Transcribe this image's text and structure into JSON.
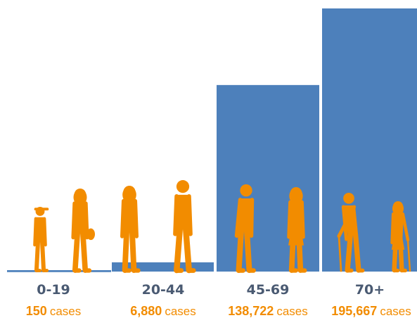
{
  "chart_data": {
    "type": "bar",
    "title": "",
    "xlabel": "",
    "ylabel": "",
    "categories": [
      "0-19",
      "20-44",
      "45-69",
      "70+"
    ],
    "values": [
      150,
      6880,
      138722,
      195667
    ],
    "value_labels": [
      {
        "number": "150",
        "unit": "cases"
      },
      {
        "number": "6,880",
        "unit": "cases"
      },
      {
        "number": "138,722",
        "unit": "cases"
      },
      {
        "number": "195,667",
        "unit": "cases"
      }
    ],
    "ylim": [
      0,
      195667
    ],
    "grid": false,
    "legend": "none"
  },
  "colors": {
    "bar": "#4d80bb",
    "figure": "#f28c00",
    "category_text": "#4a5a72",
    "value_text": "#f28c00"
  },
  "figures": [
    [
      "child-figure-icon",
      "teen-figure-icon"
    ],
    [
      "young-woman-figure-icon",
      "young-man-figure-icon"
    ],
    [
      "middle-aged-man-figure-icon",
      "middle-aged-woman-figure-icon"
    ],
    [
      "elderly-man-with-cane-figure-icon",
      "elderly-woman-with-cane-figure-icon"
    ]
  ]
}
